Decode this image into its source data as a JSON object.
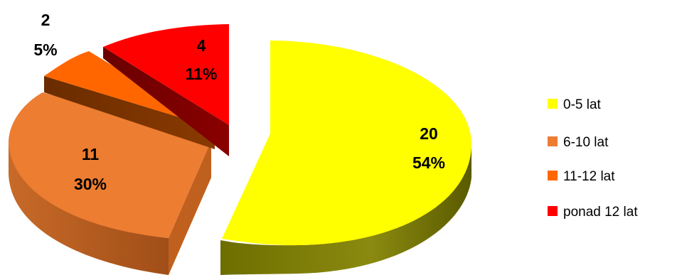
{
  "chart_data": {
    "type": "pie",
    "title": "",
    "three_d": true,
    "exploded": true,
    "legend_position": "right",
    "slices": [
      {
        "label": "0-5 lat",
        "value": 20,
        "percent": "54%",
        "color": "#FFFF00",
        "side_color": "#7A7A00"
      },
      {
        "label": "6-10 lat",
        "value": 11,
        "percent": "30%",
        "color": "#ED7D31",
        "side_color": "#B85A1F"
      },
      {
        "label": "11-12 lat",
        "value": 2,
        "percent": "5%",
        "color": "#FF6600",
        "side_color": "#7A3000"
      },
      {
        "label": "ponad 12 lat",
        "value": 4,
        "percent": "11%",
        "color": "#FF0000",
        "side_color": "#7A0000"
      }
    ]
  }
}
